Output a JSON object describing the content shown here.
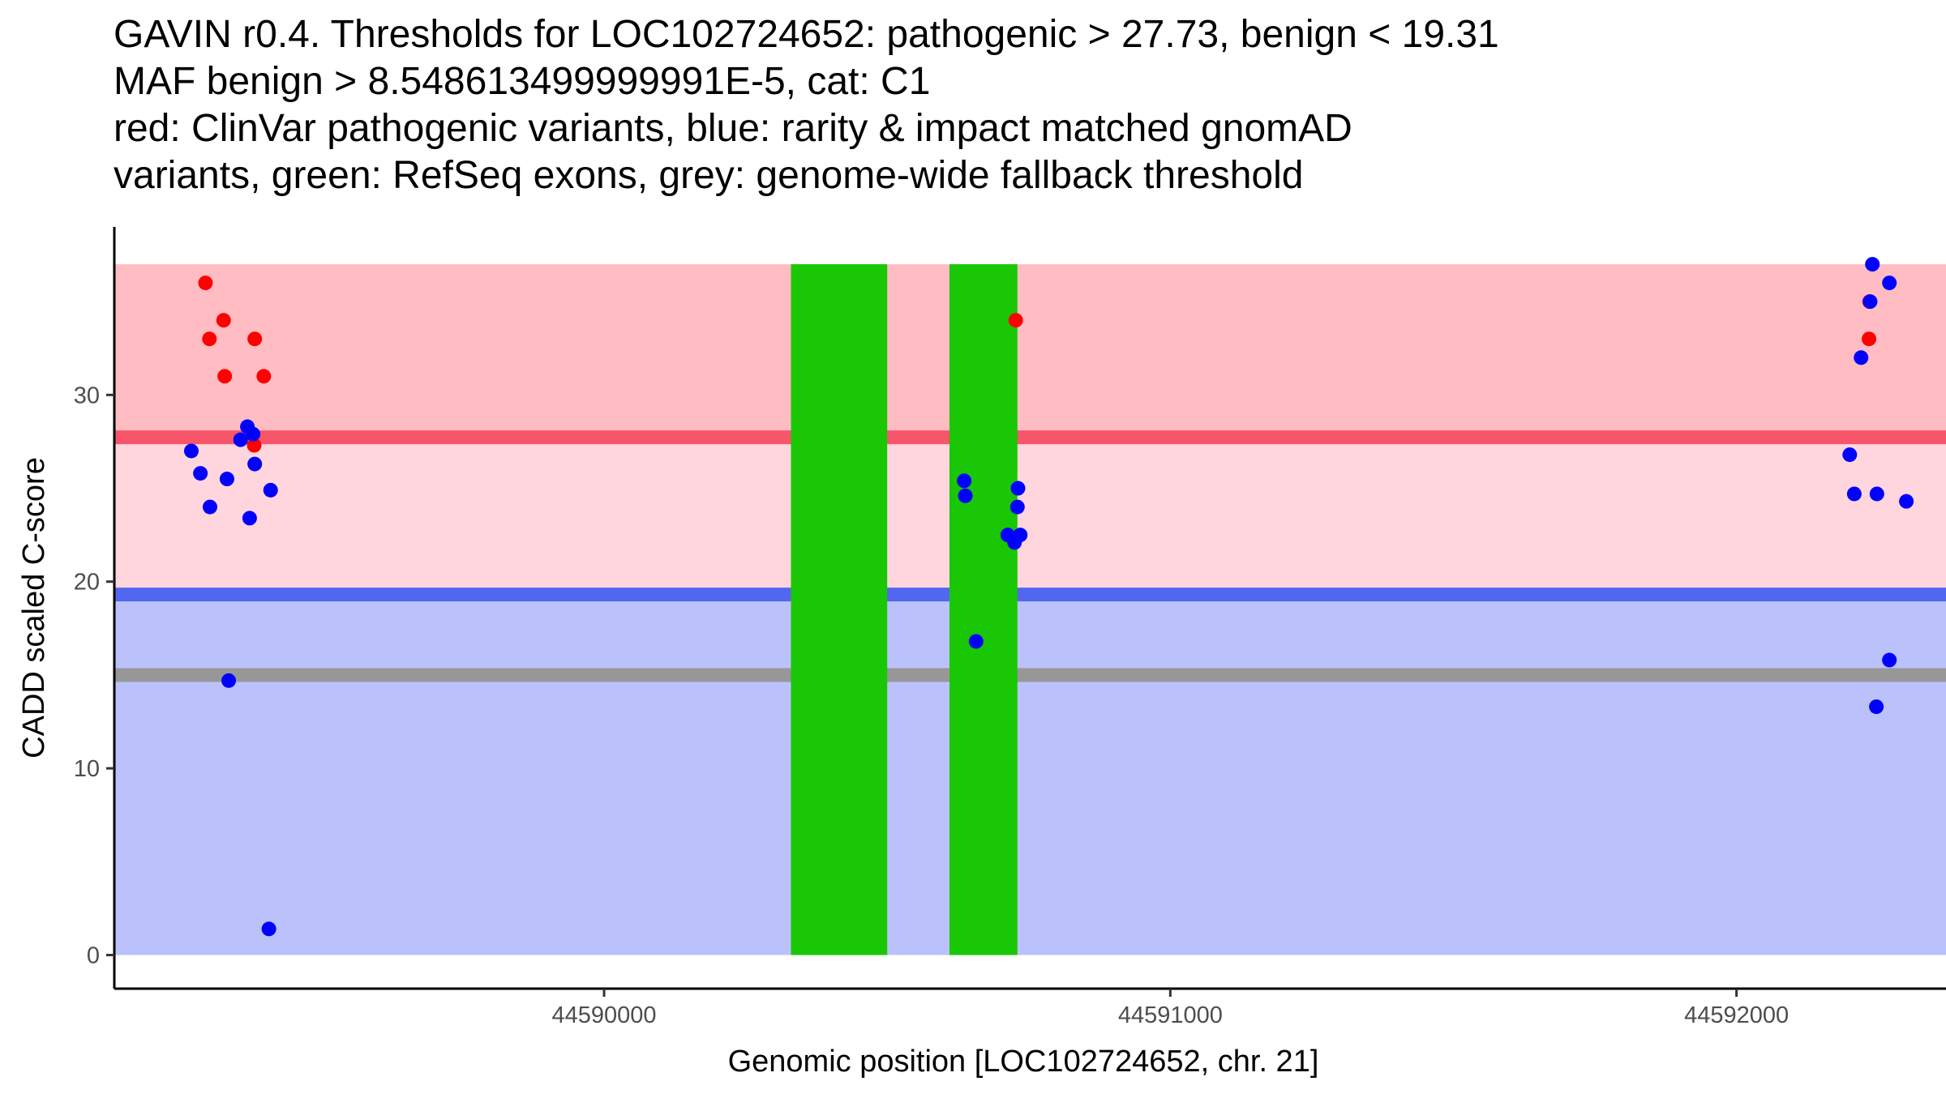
{
  "chart_data": {
    "type": "scatter",
    "title_lines": [
      "GAVIN r0.4. Thresholds for LOC102724652: pathogenic > 27.73, benign < 19.31",
      "MAF benign > 8.548613499999991E-5, cat: C1",
      "red: ClinVar pathogenic variants, blue: rarity & impact matched gnomAD",
      "variants, green: RefSeq exons, grey: genome-wide fallback threshold"
    ],
    "xlabel": "Genomic position [LOC102724652, chr. 21]",
    "ylabel": "CADD scaled C-score",
    "xlim": [
      44589135,
      44592370
    ],
    "ylim": [
      -1.8,
      39
    ],
    "x_ticks": [
      44590000,
      44591000,
      44592000
    ],
    "x_tick_labels": [
      "44590000",
      "44591000",
      "44592000"
    ],
    "y_ticks": [
      0,
      10,
      20,
      30
    ],
    "y_tick_labels": [
      "0",
      "10",
      "20",
      "30"
    ],
    "thresholds": {
      "pathogenic": 27.73,
      "benign": 19.31,
      "fallback": 15
    },
    "bands": [
      {
        "name": "benign-region",
        "from": 0,
        "to": 19.31,
        "color": "#bbc2fb"
      },
      {
        "name": "intermediate-region",
        "from": 19.31,
        "to": 27.73,
        "color": "#ffd6dd"
      },
      {
        "name": "pathogenic-region",
        "from": 27.73,
        "to": 37,
        "color": "#ffbcc3"
      }
    ],
    "threshold_lines": [
      {
        "name": "pathogenic-threshold-line",
        "y": 27.73,
        "color": "#f75569"
      },
      {
        "name": "benign-threshold-line",
        "y": 19.31,
        "color": "#5267ef"
      },
      {
        "name": "fallback-threshold-line",
        "y": 15,
        "color": "#979797"
      }
    ],
    "exons": [
      {
        "start": 44590330,
        "end": 44590500,
        "ymin": 0,
        "ymax": 37
      },
      {
        "start": 44590610,
        "end": 44590730,
        "ymin": 0,
        "ymax": 37
      }
    ],
    "series": [
      {
        "name": "ClinVar pathogenic variants",
        "color": "#ff0000",
        "points": [
          {
            "x": 44589296,
            "y": 36
          },
          {
            "x": 44589303,
            "y": 33
          },
          {
            "x": 44589328,
            "y": 34
          },
          {
            "x": 44589330,
            "y": 31
          },
          {
            "x": 44589383,
            "y": 33
          },
          {
            "x": 44589382,
            "y": 27.3
          },
          {
            "x": 44589399,
            "y": 31
          },
          {
            "x": 44590727,
            "y": 34
          },
          {
            "x": 44592235,
            "y": 35
          },
          {
            "x": 44592234,
            "y": 33
          }
        ]
      },
      {
        "name": "rarity & impact matched gnomAD variants",
        "color": "#0000ff",
        "points": [
          {
            "x": 44589271,
            "y": 27
          },
          {
            "x": 44589287,
            "y": 25.8
          },
          {
            "x": 44589304,
            "y": 24
          },
          {
            "x": 44589334,
            "y": 25.5
          },
          {
            "x": 44589337,
            "y": 14.7
          },
          {
            "x": 44589358,
            "y": 27.6
          },
          {
            "x": 44589370,
            "y": 28.3
          },
          {
            "x": 44589374,
            "y": 23.4
          },
          {
            "x": 44589380,
            "y": 27.9
          },
          {
            "x": 44589383,
            "y": 26.3
          },
          {
            "x": 44589411,
            "y": 24.9
          },
          {
            "x": 44589408,
            "y": 1.4
          },
          {
            "x": 44590636,
            "y": 25.4
          },
          {
            "x": 44590638,
            "y": 24.6
          },
          {
            "x": 44590657,
            "y": 16.8
          },
          {
            "x": 44590713,
            "y": 22.5
          },
          {
            "x": 44590725,
            "y": 22.1
          },
          {
            "x": 44590730,
            "y": 24
          },
          {
            "x": 44590731,
            "y": 25
          },
          {
            "x": 44590735,
            "y": 22.5
          },
          {
            "x": 44592200,
            "y": 26.8
          },
          {
            "x": 44592208,
            "y": 24.7
          },
          {
            "x": 44592220,
            "y": 32
          },
          {
            "x": 44592236,
            "y": 35
          },
          {
            "x": 44592240,
            "y": 37
          },
          {
            "x": 44592248,
            "y": 24.7
          },
          {
            "x": 44592247,
            "y": 13.3
          },
          {
            "x": 44592270,
            "y": 36
          },
          {
            "x": 44592270,
            "y": 15.8
          },
          {
            "x": 44592300,
            "y": 24.3
          }
        ]
      }
    ]
  }
}
